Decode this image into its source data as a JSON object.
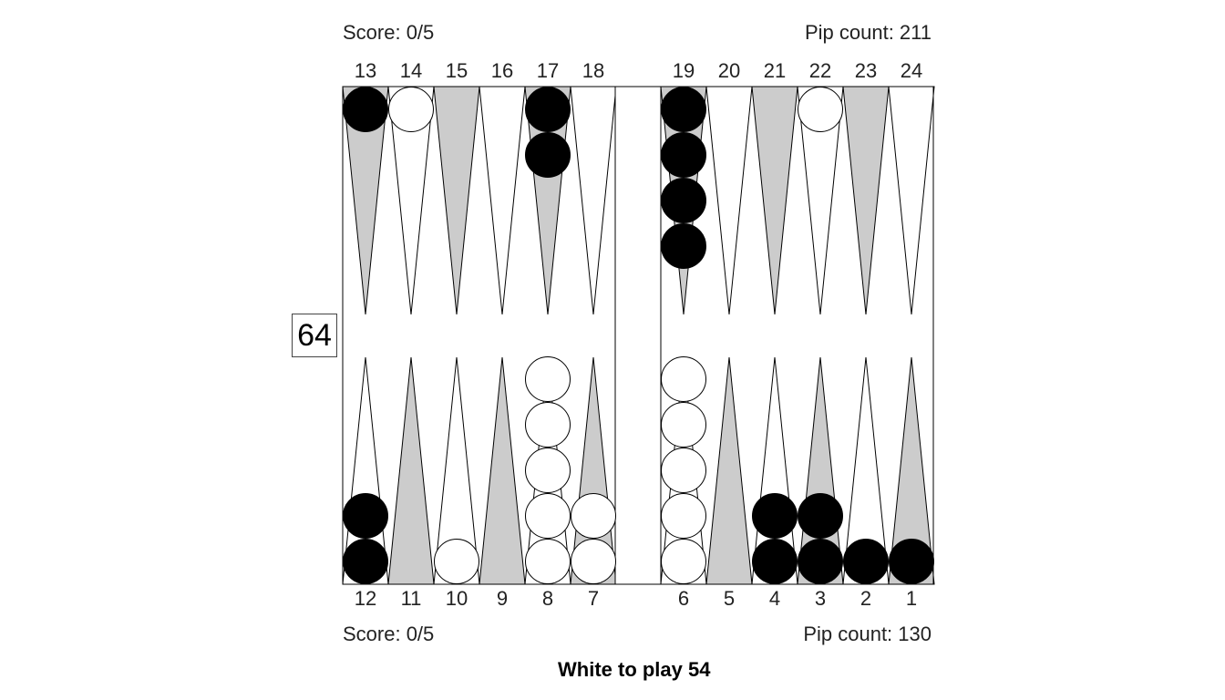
{
  "top": {
    "score": "Score: 0/5",
    "pip": "Pip count: 211"
  },
  "bottom": {
    "score": "Score: 0/5",
    "pip": "Pip count: 130"
  },
  "status": "White to play 54",
  "cube": "64",
  "colors": {
    "dark_point": "#cccccc",
    "light_point": "#ffffff",
    "black_checker": "#000000",
    "white_checker": "#ffffff",
    "outline": "#000000"
  },
  "board": {
    "top_labels": [
      "13",
      "14",
      "15",
      "16",
      "17",
      "18",
      "19",
      "20",
      "21",
      "22",
      "23",
      "24"
    ],
    "bottom_labels": [
      "12",
      "11",
      "10",
      "9",
      "8",
      "7",
      "6",
      "5",
      "4",
      "3",
      "2",
      "1"
    ],
    "points": [
      {
        "point": 1,
        "color": "black",
        "count": 1
      },
      {
        "point": 2,
        "color": "black",
        "count": 1
      },
      {
        "point": 3,
        "color": "black",
        "count": 2
      },
      {
        "point": 4,
        "color": "black",
        "count": 2
      },
      {
        "point": 6,
        "color": "white",
        "count": 5
      },
      {
        "point": 7,
        "color": "white",
        "count": 2
      },
      {
        "point": 8,
        "color": "white",
        "count": 5
      },
      {
        "point": 10,
        "color": "white",
        "count": 1
      },
      {
        "point": 12,
        "color": "black",
        "count": 2
      },
      {
        "point": 13,
        "color": "black",
        "count": 1
      },
      {
        "point": 14,
        "color": "white",
        "count": 1
      },
      {
        "point": 17,
        "color": "black",
        "count": 2
      },
      {
        "point": 19,
        "color": "black",
        "count": 4
      },
      {
        "point": 22,
        "color": "white",
        "count": 1
      }
    ]
  }
}
